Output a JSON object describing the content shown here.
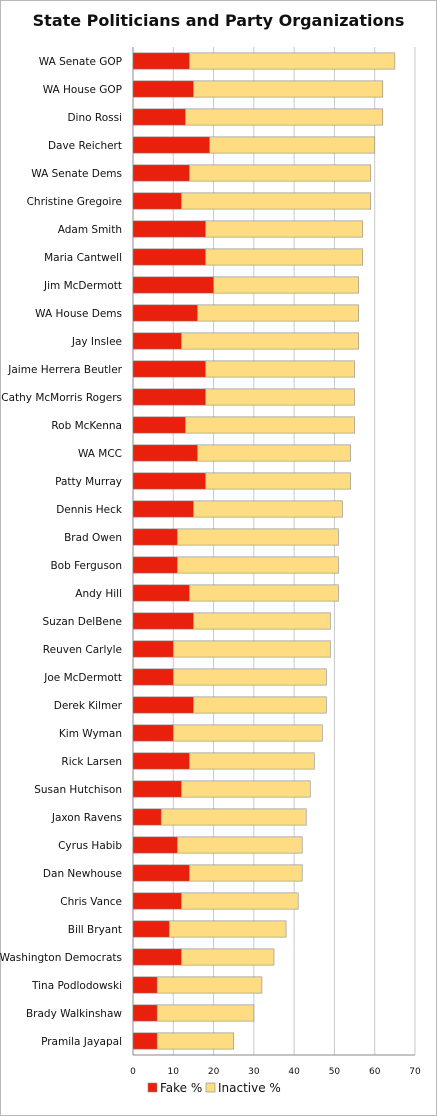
{
  "chart_data": {
    "type": "bar",
    "orientation": "horizontal",
    "stacked": true,
    "title": "State Politicians and Party Organizations",
    "categories": [
      "WA Senate GOP",
      "WA House GOP",
      "Dino Rossi",
      "Dave Reichert",
      "WA Senate Dems",
      "Christine Gregoire",
      "Adam Smith",
      "Maria Cantwell",
      "Jim McDermott",
      "WA House Dems",
      "Jay Inslee",
      "Jaime Herrera Beutler",
      "Cathy McMorris Rogers",
      "Rob McKenna",
      "WA MCC",
      "Patty Murray",
      "Dennis Heck",
      "Brad Owen",
      "Bob Ferguson",
      "Andy Hill",
      "Suzan DelBene",
      "Reuven Carlyle",
      "Joe McDermott",
      "Derek Kilmer",
      "Kim Wyman",
      "Rick Larsen",
      "Susan Hutchison",
      "Jaxon Ravens",
      "Cyrus Habib",
      "Dan Newhouse",
      "Chris Vance",
      "Bill Bryant",
      "Washington Democrats",
      "Tina Podlodowski",
      "Brady Walkinshaw",
      "Pramila Jayapal"
    ],
    "series": [
      {
        "name": "Fake %",
        "color": "#e8200c",
        "values": [
          14,
          15,
          13,
          19,
          14,
          12,
          18,
          18,
          20,
          16,
          12,
          18,
          18,
          13,
          16,
          18,
          15,
          11,
          11,
          14,
          15,
          10,
          10,
          15,
          10,
          14,
          12,
          7,
          11,
          14,
          12,
          9,
          12,
          6,
          6,
          6
        ]
      },
      {
        "name": "Inactive %",
        "color": "#fddc82",
        "values": [
          51,
          47,
          49,
          41,
          45,
          47,
          39,
          39,
          36,
          40,
          44,
          37,
          37,
          42,
          38,
          36,
          37,
          40,
          40,
          37,
          34,
          39,
          38,
          33,
          37,
          31,
          32,
          36,
          31,
          28,
          29,
          29,
          23,
          26,
          24,
          19
        ]
      }
    ],
    "xlim": [
      0,
      70
    ],
    "xticks": [
      0,
      10,
      20,
      30,
      40,
      50,
      60,
      70
    ],
    "xlabel": "",
    "ylabel": "",
    "grid": true,
    "legend": "bottom"
  }
}
